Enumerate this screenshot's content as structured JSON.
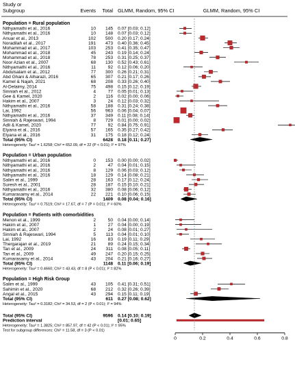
{
  "header": {
    "study_label_1": "Study or",
    "study_label_2": "Subgroup",
    "events_label": "Events",
    "total_label": "Total",
    "effect_col_label": "GLMM, Random, 95% CI",
    "plot_col_label": "GLMM, Random, 95% CI"
  },
  "chart_data": {
    "type": "forest",
    "xlim": [
      0,
      0.8
    ],
    "xticks": [
      "0",
      "0.2",
      "0.4",
      "0.6",
      "0.8"
    ],
    "reference_line_x": 0.14,
    "groups": [
      {
        "name": "Population = Rural population",
        "studies": [
          {
            "study": "Nithyamathi et al., 2016",
            "events": "10",
            "total": "145",
            "ci_text": "0.07 [0.03; 0.12]",
            "est": 0.07,
            "lo": 0.03,
            "hi": 0.12
          },
          {
            "study": "Nithyamathi et al., 2016",
            "events": "10",
            "total": "148",
            "ci_text": "0.07 [0.03; 0.12]",
            "est": 0.07,
            "lo": 0.03,
            "hi": 0.12
          },
          {
            "study": "Anuar et al., 2013",
            "events": "102",
            "total": "500",
            "ci_text": "0.20 [0.17; 0.24]",
            "est": 0.2,
            "lo": 0.17,
            "hi": 0.24
          },
          {
            "study": "Noradilah et al., 2017",
            "events": "191",
            "total": "473",
            "ci_text": "0.40 [0.36; 0.45]",
            "est": 0.4,
            "lo": 0.36,
            "hi": 0.45
          },
          {
            "study": "Mohammad et al., 2017",
            "events": "103",
            "total": "253",
            "ci_text": "0.41 [0.35; 0.47]",
            "est": 0.41,
            "lo": 0.35,
            "hi": 0.47
          },
          {
            "study": "Mohammad et al., 2018",
            "events": "45",
            "total": "243",
            "ci_text": "0.19 [0.14; 0.24]",
            "est": 0.19,
            "lo": 0.14,
            "hi": 0.24
          },
          {
            "study": "Mohammad et al., 2018",
            "events": "78",
            "total": "253",
            "ci_text": "0.31 [0.25; 0.37]",
            "est": 0.31,
            "lo": 0.25,
            "hi": 0.37
          },
          {
            "study": "Noor Azian et al., 2007",
            "events": "68",
            "total": "130",
            "ci_text": "0.52 [0.43; 0.61]",
            "est": 0.52,
            "lo": 0.43,
            "hi": 0.61
          },
          {
            "study": "Nithyamathi et al., 2016",
            "events": "11",
            "total": "92",
            "ci_text": "0.12 [0.06; 0.20]",
            "est": 0.12,
            "lo": 0.06,
            "hi": 0.2
          },
          {
            "study": "Abdulsalam et al., 2012",
            "events": "77",
            "total": "300",
            "ci_text": "0.26 [0.21; 0.31]",
            "est": 0.26,
            "lo": 0.21,
            "hi": 0.31
          },
          {
            "study": "Abd Ghani & Alharazi, 2016",
            "events": "65",
            "total": "307",
            "ci_text": "0.21 [0.17; 0.26]",
            "est": 0.21,
            "lo": 0.17,
            "hi": 0.26
          },
          {
            "study": "Kamel & Najah, 2021",
            "events": "68",
            "total": "208",
            "ci_text": "0.33 [0.26; 0.40]",
            "est": 0.33,
            "lo": 0.26,
            "hi": 0.4
          },
          {
            "study": "Al-Delaimy, 2014",
            "events": "75",
            "total": "498",
            "ci_text": "0.15 [0.12; 0.19]",
            "est": 0.15,
            "lo": 0.12,
            "hi": 0.19
          },
          {
            "study": "Sinniah et al., 2012",
            "events": "4",
            "total": "77",
            "ci_text": "0.05 [0.01; 0.13]",
            "est": 0.05,
            "lo": 0.01,
            "hi": 0.13
          },
          {
            "study": "Gee & Kamel, 2020",
            "events": "2",
            "total": "116",
            "ci_text": "0.02 [0.00; 0.06]",
            "est": 0.02,
            "lo": 0.0,
            "hi": 0.06
          },
          {
            "study": "Hakim et al., 2007",
            "events": "3",
            "total": "24",
            "ci_text": "0.12 [0.03; 0.32]",
            "est": 0.12,
            "lo": 0.03,
            "hi": 0.32
          },
          {
            "study": "Nithyamathi et al., 2016",
            "events": "58",
            "total": "188",
            "ci_text": "0.31 [0.24; 0.38]",
            "est": 0.31,
            "lo": 0.24,
            "hi": 0.38
          },
          {
            "study": "Lai, 1992",
            "events": "56",
            "total": "963",
            "ci_text": "0.06 [0.04; 0.07]",
            "est": 0.06,
            "lo": 0.04,
            "hi": 0.07
          },
          {
            "study": "Nithyamathi et al., 2016",
            "events": "37",
            "total": "349",
            "ci_text": "0.11 [0.08; 0.14]",
            "est": 0.11,
            "lo": 0.08,
            "hi": 0.14
          },
          {
            "study": "Sinniah & Rajeswari, 1994",
            "events": "8",
            "total": "729",
            "ci_text": "0.01 [0.00; 0.02]",
            "est": 0.01,
            "lo": 0.0,
            "hi": 0.02
          },
          {
            "study": "Adli & Kamel, 2020",
            "events": "77",
            "total": "92",
            "ci_text": "0.84 [0.75; 0.91]",
            "est": 0.84,
            "lo": 0.75,
            "hi": 0.91
          },
          {
            "study": "Elyana et al., 2016",
            "events": "57",
            "total": "165",
            "ci_text": "0.35 [0.27; 0.42]",
            "est": 0.35,
            "lo": 0.27,
            "hi": 0.42
          },
          {
            "study": "Elyana et al., 2016",
            "events": "31",
            "total": "175",
            "ci_text": "0.18 [0.12; 0.24]",
            "est": 0.18,
            "lo": 0.12,
            "hi": 0.24
          }
        ],
        "total": {
          "label": "Total (95% CI)",
          "total": "6428",
          "ci_text": "0.18 [0.11; 0.27]",
          "est": 0.18,
          "lo": 0.11,
          "hi": 0.27
        },
        "heterogeneity": "Heterogeneity: Tau² = 1.6258; Chi² = 652.09, df = 22 (P < 0.01); I² = 97%"
      },
      {
        "name": "Population = Urban population",
        "studies": [
          {
            "study": "Nithyamathi et al., 2016",
            "events": "0",
            "total": "153",
            "ci_text": "0.00 [0.00; 0.02]",
            "est": 0.0,
            "lo": 0.0,
            "hi": 0.02
          },
          {
            "study": "Nithyamathi et al., 2016",
            "events": "2",
            "total": "47",
            "ci_text": "0.04 [0.01; 0.15]",
            "est": 0.04,
            "lo": 0.01,
            "hi": 0.15
          },
          {
            "study": "Nithyamathi et al., 2016",
            "events": "8",
            "total": "129",
            "ci_text": "0.06 [0.03; 0.12]",
            "est": 0.06,
            "lo": 0.03,
            "hi": 0.12
          },
          {
            "study": "Nithyamathi et al., 2016",
            "events": "18",
            "total": "129",
            "ci_text": "0.14 [0.08; 0.21]",
            "est": 0.14,
            "lo": 0.08,
            "hi": 0.21
          },
          {
            "study": "Salim et al., 1999",
            "events": "28",
            "total": "163",
            "ci_text": "0.17 [0.12; 0.24]",
            "est": 0.17,
            "lo": 0.12,
            "hi": 0.24
          },
          {
            "study": "Suresh et al., 2001",
            "events": "28",
            "total": "187",
            "ci_text": "0.15 [0.10; 0.21]",
            "est": 0.15,
            "lo": 0.1,
            "hi": 0.21
          },
          {
            "study": "Nithyamathi et al., 2016",
            "events": "32",
            "total": "380",
            "ci_text": "0.08 [0.06; 0.12]",
            "est": 0.08,
            "lo": 0.06,
            "hi": 0.12
          },
          {
            "study": "Kumarasamy et al., 2014",
            "events": "22",
            "total": "221",
            "ci_text": "0.10 [0.06; 0.15]",
            "est": 0.1,
            "lo": 0.06,
            "hi": 0.15
          }
        ],
        "total": {
          "label": "Total (95% CI)",
          "total": "1409",
          "ci_text": "0.08 [0.04; 0.16]",
          "est": 0.08,
          "lo": 0.04,
          "hi": 0.16
        },
        "heterogeneity": "Heterogeneity: Tau² = 0.7519; Chi² = 17.67, df = 7 (P = 0.01); I² = 60%"
      },
      {
        "name": "Population = Patients with comorbidities",
        "studies": [
          {
            "study": "Menon et al., 1999",
            "events": "2",
            "total": "50",
            "ci_text": "0.04 [0.00; 0.14]",
            "est": 0.04,
            "lo": 0.0,
            "hi": 0.14
          },
          {
            "study": "Hakim et al., 2007",
            "events": "1",
            "total": "27",
            "ci_text": "0.04 [0.00; 0.19]",
            "est": 0.04,
            "lo": 0.0,
            "hi": 0.19
          },
          {
            "study": "Hakim et al., 2007",
            "events": "2",
            "total": "24",
            "ci_text": "0.08 [0.01; 0.27]",
            "est": 0.08,
            "lo": 0.01,
            "hi": 0.27
          },
          {
            "study": "Sinniah & Rajeswari, 1994",
            "events": "5",
            "total": "113",
            "ci_text": "0.04 [0.01; 0.10]",
            "est": 0.04,
            "lo": 0.01,
            "hi": 0.1
          },
          {
            "study": "Lai, 1992",
            "events": "16",
            "total": "83",
            "ci_text": "0.19 [0.11; 0.29]",
            "est": 0.19,
            "lo": 0.11,
            "hi": 0.29
          },
          {
            "study": "Thergarajan et al., 2019",
            "events": "21",
            "total": "89",
            "ci_text": "0.24 [0.15; 0.34]",
            "est": 0.24,
            "lo": 0.15,
            "hi": 0.34
          },
          {
            "study": "Tan et al., 2009",
            "events": "24",
            "total": "311",
            "ci_text": "0.08 [0.05; 0.11]",
            "est": 0.08,
            "lo": 0.05,
            "hi": 0.11
          },
          {
            "study": "Tan et al., 2009",
            "events": "49",
            "total": "247",
            "ci_text": "0.20 [0.15; 0.25]",
            "est": 0.2,
            "lo": 0.15,
            "hi": 0.25
          },
          {
            "study": "Kumarasamy et al., 2014",
            "events": "43",
            "total": "204",
            "ci_text": "0.21 [0.16; 0.27]",
            "est": 0.21,
            "lo": 0.16,
            "hi": 0.27
          }
        ],
        "total": {
          "label": "Total (95% CI)",
          "total": "1148",
          "ci_text": "0.11 [0.06; 0.19]",
          "est": 0.11,
          "lo": 0.06,
          "hi": 0.19
        },
        "heterogeneity": "Heterogeneity: Tau² = 0.4660; Chi² = 43.43, df = 8 (P < 0.01); I² = 82%"
      },
      {
        "name": "Population = High Risk Group",
        "studies": [
          {
            "study": "Salim et al., 1999",
            "events": "43",
            "total": "105",
            "ci_text": "0.41 [0.31; 0.51]",
            "est": 0.41,
            "lo": 0.31,
            "hi": 0.51
          },
          {
            "study": "Sahimin et al., 2020",
            "events": "68",
            "total": "212",
            "ci_text": "0.32 [0.26; 0.39]",
            "est": 0.32,
            "lo": 0.26,
            "hi": 0.39
          },
          {
            "study": "Angal et al., 2015",
            "events": "43",
            "total": "294",
            "ci_text": "0.15 [0.11; 0.19]",
            "est": 0.15,
            "lo": 0.11,
            "hi": 0.19
          }
        ],
        "total": {
          "label": "Total (95% CI)",
          "total": "611",
          "ci_text": "0.27 [0.08; 0.62]",
          "est": 0.27,
          "lo": 0.08,
          "hi": 0.62
        },
        "heterogeneity": "Heterogeneity: Tau² = 0.3182; Chi² = 34.53, df = 2 (P < 0.01); I² = 94%"
      }
    ],
    "overall": {
      "label": "Total (95% CI)",
      "total": "9596",
      "ci_text": "0.14 [0.10; 0.19]",
      "est": 0.14,
      "lo": 0.1,
      "hi": 0.19
    },
    "prediction": {
      "label": "Prediction interval",
      "ci_text": "[0.01; 0.65]",
      "lo": 0.01,
      "hi": 0.65
    },
    "overall_heterogeneity": "Heterogeneity: Tau² = 1.3825; Chi² = 857.97, df = 42 (P < 0.01); I² = 95%",
    "subgroup_test": "Test for subgroup differences: Chi² = 11.58, df = 3 (P < 0.01)"
  },
  "colors": {
    "marker": "#c0282c",
    "marker_stroke": "#7a1518",
    "diamond": "#000000",
    "ref_line": "#7f7f7f",
    "prediction": "#c0282c",
    "separator": "#000000"
  }
}
